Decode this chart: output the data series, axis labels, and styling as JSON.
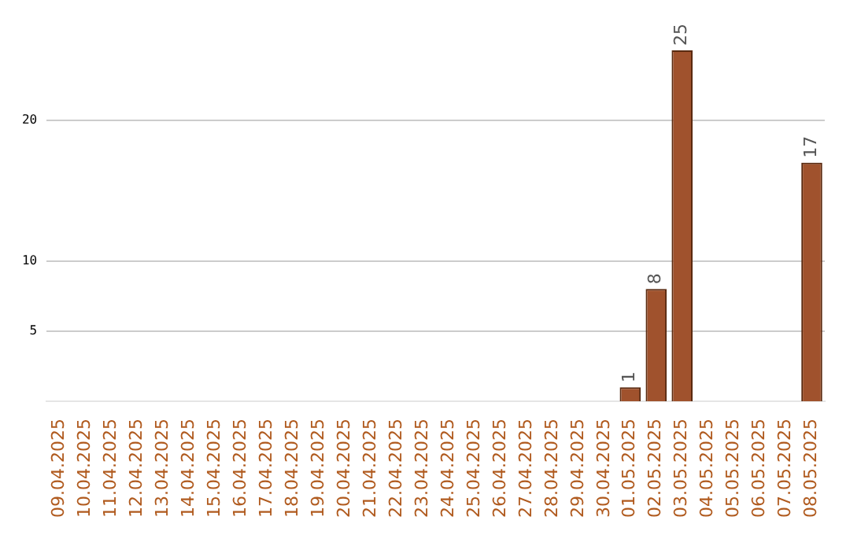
{
  "chart_data": {
    "type": "bar",
    "categories": [
      "09.04.2025",
      "10.04.2025",
      "11.04.2025",
      "12.04.2025",
      "13.04.2025",
      "14.04.2025",
      "15.04.2025",
      "16.04.2025",
      "17.04.2025",
      "18.04.2025",
      "19.04.2025",
      "20.04.2025",
      "21.04.2025",
      "22.04.2025",
      "23.04.2025",
      "24.04.2025",
      "25.04.2025",
      "26.04.2025",
      "27.04.2025",
      "28.04.2025",
      "29.04.2025",
      "30.04.2025",
      "01.05.2025",
      "02.05.2025",
      "03.05.2025",
      "04.05.2025",
      "05.05.2025",
      "06.05.2025",
      "07.05.2025",
      "08.05.2025"
    ],
    "values": [
      null,
      null,
      null,
      null,
      null,
      null,
      null,
      null,
      null,
      null,
      null,
      null,
      null,
      null,
      null,
      null,
      null,
      null,
      null,
      null,
      null,
      null,
      1,
      8,
      25,
      null,
      null,
      null,
      null,
      17
    ],
    "color": "#a0522d",
    "ylim": [
      0,
      25
    ],
    "yticks": [
      5,
      10,
      20
    ],
    "grid": "y",
    "data_labels": true,
    "legend": false
  }
}
